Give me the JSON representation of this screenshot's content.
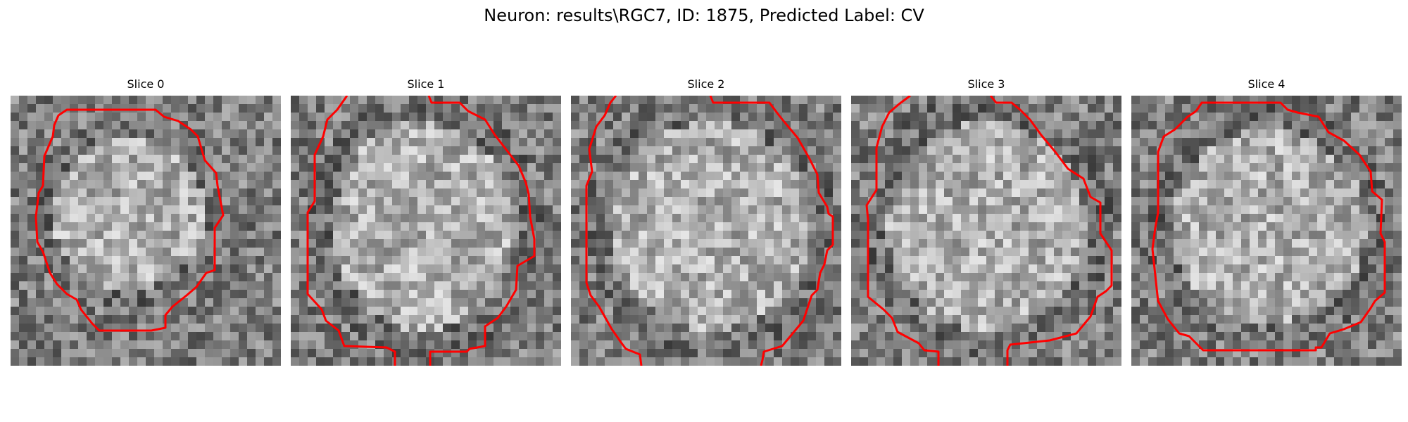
{
  "figure": {
    "title": "Neuron: results\\RGC7, ID: 1875, Predicted Label: CV",
    "contour_color": "#ff0000",
    "colormap": "gray"
  },
  "panels": [
    {
      "title": "Slice 0"
    },
    {
      "title": "Slice 1"
    },
    {
      "title": "Slice 2"
    },
    {
      "title": "Slice 3"
    },
    {
      "title": "Slice 4"
    }
  ]
}
